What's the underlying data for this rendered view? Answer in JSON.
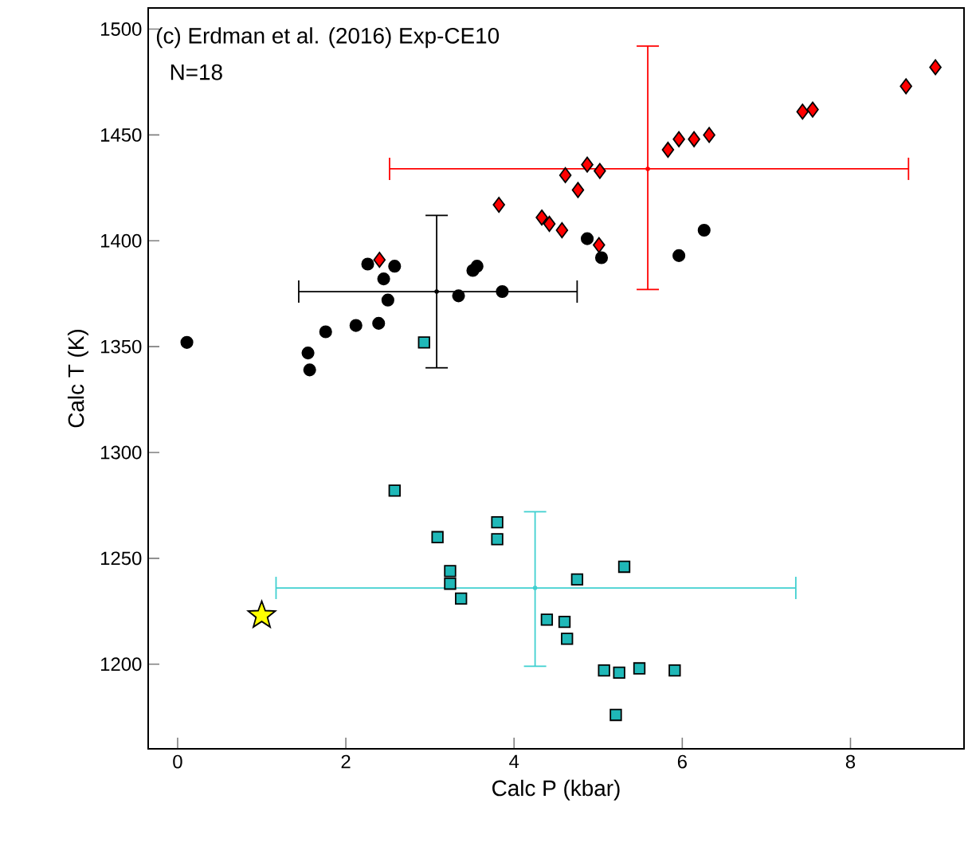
{
  "chart_data": {
    "type": "scatter",
    "title": "(c) Erdman et al. (2016) Exp-CE10",
    "subtitle": "N=18",
    "xlabel": "Calc P (kbar)",
    "ylabel": "Calc T (K)",
    "xlim": [
      -0.35,
      9.35
    ],
    "ylim": [
      1160,
      1510
    ],
    "xticks": [
      0,
      2,
      4,
      6,
      8
    ],
    "yticks": [
      1200,
      1250,
      1300,
      1350,
      1400,
      1450,
      1500
    ],
    "grid": false,
    "series": [
      {
        "color": "#000000",
        "marker": "circle",
        "x": [
          0.11,
          1.55,
          1.57,
          1.76,
          2.12,
          2.39,
          2.26,
          2.58,
          2.45,
          2.5,
          3.34,
          3.51,
          3.56,
          3.86,
          4.87,
          5.04,
          5.96,
          6.26
        ],
        "values": [
          1352,
          1347,
          1339,
          1357,
          1360,
          1361,
          1389,
          1388,
          1382,
          1372,
          1374,
          1386,
          1388,
          1376,
          1401,
          1392,
          1393,
          1405
        ]
      },
      {
        "color": "#ff0000",
        "marker": "diamond",
        "x": [
          2.4,
          3.82,
          4.33,
          4.42,
          4.57,
          5.01,
          4.61,
          4.76,
          4.87,
          5.02,
          5.83,
          5.96,
          6.14,
          6.32,
          7.43,
          7.55,
          8.66,
          9.01
        ],
        "values": [
          1391,
          1417,
          1411,
          1408,
          1405,
          1398,
          1431,
          1424,
          1436,
          1433,
          1443,
          1448,
          1448,
          1450,
          1461,
          1462,
          1473,
          1482
        ]
      },
      {
        "color": "#1fb8b8",
        "marker": "square",
        "x": [
          2.93,
          2.58,
          3.09,
          3.8,
          3.8,
          3.24,
          3.24,
          3.37,
          4.75,
          5.31,
          4.39,
          4.6,
          4.63,
          5.07,
          5.25,
          5.49,
          5.91,
          5.21
        ],
        "values": [
          1352,
          1282,
          1260,
          1267,
          1259,
          1244,
          1238,
          1231,
          1240,
          1246,
          1221,
          1220,
          1212,
          1197,
          1196,
          1198,
          1197,
          1176
        ]
      },
      {
        "color": "#000000",
        "marker": "circle",
        "x": [
          3.08
        ],
        "values": [
          1376
        ],
        "errors": [
          [
            1340,
            1412
          ]
        ],
        "xerrors": [
          [
            1.44,
            4.75
          ]
        ]
      },
      {
        "color": "#ff0000",
        "marker": "circle",
        "x": [
          5.59
        ],
        "values": [
          1434
        ],
        "errors": [
          [
            1377,
            1492
          ]
        ],
        "xerrors": [
          [
            2.52,
            8.69
          ]
        ]
      },
      {
        "color": "#40d0d0",
        "marker": "circle",
        "x": [
          4.25
        ],
        "values": [
          1236
        ],
        "errors": [
          [
            1199,
            1272
          ]
        ],
        "xerrors": [
          [
            1.17,
            7.35
          ]
        ]
      },
      {
        "color": "#ffff00",
        "marker": "star",
        "x": [
          1.0
        ],
        "values": [
          1223
        ]
      }
    ]
  }
}
